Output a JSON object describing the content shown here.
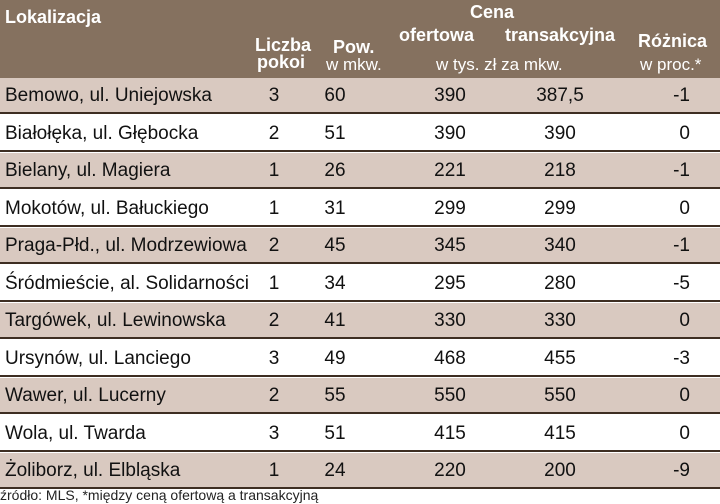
{
  "chart_data": {
    "type": "table",
    "headers": {
      "location": "Lokalizacja",
      "rooms_line1": "Liczba",
      "rooms_line2": "pokoi",
      "area_line1": "Pow.",
      "area_line2": "w mkw.",
      "price_group": "Cena",
      "offer": "ofertowa",
      "transaction": "transakcyjna",
      "price_unit": "w tys. zł za mkw.",
      "diff_line1": "Różnica",
      "diff_line2": "w proc.*"
    },
    "rows": [
      {
        "location": "Bemowo, ul. Uniejowska",
        "rooms": "3",
        "area": "60",
        "offer": "390",
        "transaction": "387,5",
        "diff": "-1"
      },
      {
        "location": "Białołęka, ul. Głębocka",
        "rooms": "2",
        "area": "51",
        "offer": "390",
        "transaction": "390",
        "diff": "0"
      },
      {
        "location": "Bielany, ul. Magiera",
        "rooms": "1",
        "area": "26",
        "offer": "221",
        "transaction": "218",
        "diff": "-1"
      },
      {
        "location": "Mokotów, ul. Bałuckiego",
        "rooms": "1",
        "area": "31",
        "offer": "299",
        "transaction": "299",
        "diff": "0"
      },
      {
        "location": "Praga-Płd., ul. Modrzewiowa",
        "rooms": "2",
        "area": "45",
        "offer": "345",
        "transaction": "340",
        "diff": "-1"
      },
      {
        "location": "Śródmieście, al. Solidarności",
        "rooms": "1",
        "area": "34",
        "offer": "295",
        "transaction": "280",
        "diff": "-5"
      },
      {
        "location": "Targówek, ul. Lewinowska",
        "rooms": "2",
        "area": "41",
        "offer": "330",
        "transaction": "330",
        "diff": "0"
      },
      {
        "location": "Ursynów, ul. Lanciego",
        "rooms": "3",
        "area": "49",
        "offer": "468",
        "transaction": "455",
        "diff": "-3"
      },
      {
        "location": "Wawer, ul. Lucerny",
        "rooms": "2",
        "area": "55",
        "offer": "550",
        "transaction": "550",
        "diff": "0"
      },
      {
        "location": "Wola, ul. Twarda",
        "rooms": "3",
        "area": "51",
        "offer": "415",
        "transaction": "415",
        "diff": "0"
      },
      {
        "location": "Żoliborz, ul. Elbląska",
        "rooms": "1",
        "area": "24",
        "offer": "220",
        "transaction": "200",
        "diff": "-9"
      }
    ],
    "source_note": "źródło: MLS, *między ceną ofertową a transakcyjną"
  },
  "colors": {
    "header_bg": "#85715f",
    "row_shaded": "#d9c9c0",
    "row_plain": "#ffffff",
    "divider": "#3e2e22"
  }
}
